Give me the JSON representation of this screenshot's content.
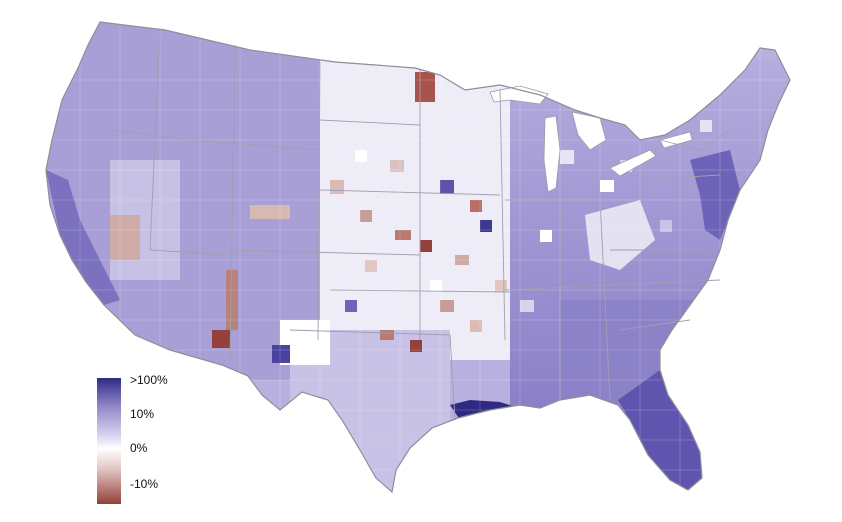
{
  "legend": {
    "labels": [
      ">100%",
      "10%",
      "0%",
      "-10%"
    ],
    "colors": {
      "high": "#2e2a84",
      "mid_high": "#8f86c9",
      "light": "#d6d2ee",
      "neutral": "#ffffff",
      "light_neg": "#e3c6c2",
      "low": "#93413a"
    }
  },
  "map": {
    "background": "#ffffff",
    "border_color": "#b9b9c4",
    "dominant_fill": "#b4acdd"
  }
}
